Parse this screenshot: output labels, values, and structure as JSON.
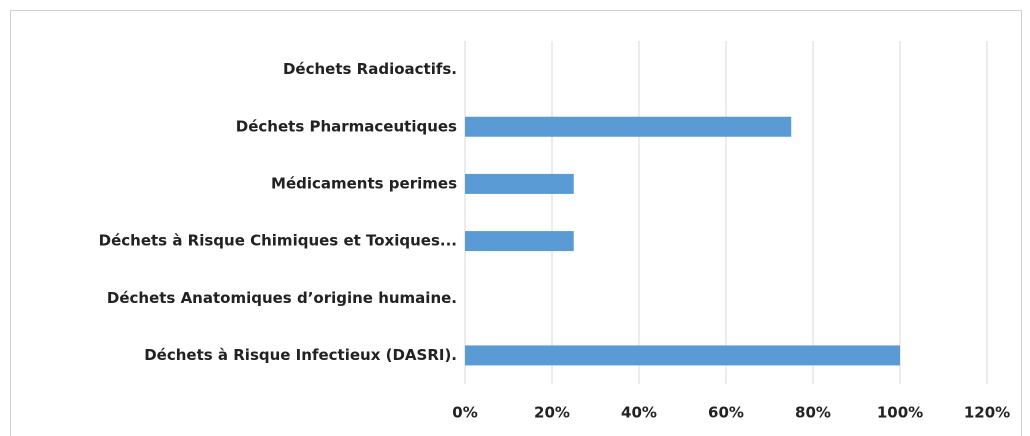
{
  "chart_data": {
    "type": "hbar",
    "categories": [
      "Déchets Radioactifs.",
      "Déchets Pharmaceutiques",
      "Médicaments perimes",
      "Déchets à Risque Chimiques et Toxiques...",
      "Déchets Anatomiques d’origine humaine.",
      "Déchets à Risque Infectieux (DASRI)."
    ],
    "values": [
      0,
      75,
      25,
      25,
      0,
      100
    ],
    "color": "#5b9bd5",
    "xlim": [
      0,
      120
    ],
    "xticks": [
      {
        "value": 0,
        "label": "0%"
      },
      {
        "value": 20,
        "label": "20%"
      },
      {
        "value": 40,
        "label": "40%"
      },
      {
        "value": 60,
        "label": "60%"
      },
      {
        "value": 80,
        "label": "80%"
      },
      {
        "value": 100,
        "label": "100%"
      },
      {
        "value": 120,
        "label": "120%"
      }
    ],
    "grid": true
  }
}
